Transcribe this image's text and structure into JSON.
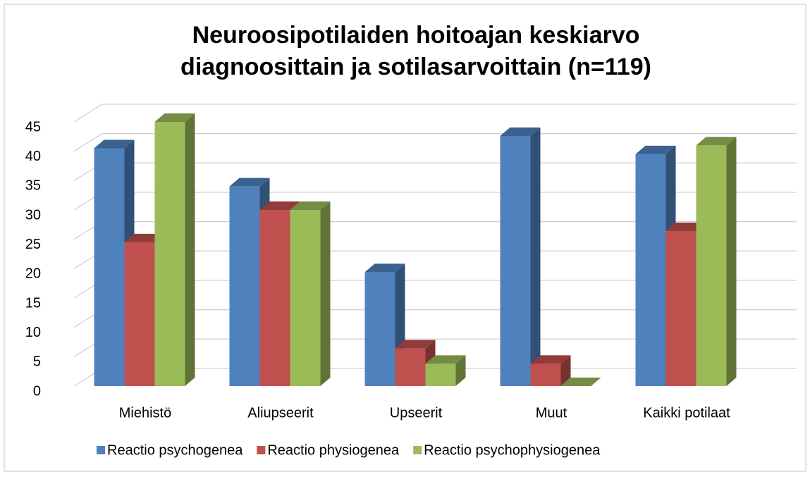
{
  "chart_data": {
    "type": "bar3d",
    "title": [
      "Neuroosipotilaiden hoitoajan keskiarvo",
      "diagnoosittain ja sotilasarvoittain (n=119)"
    ],
    "categories": [
      "Miehistö",
      "Aliupseerit",
      "Upseerit",
      "Muut",
      "Kaikki potilaat"
    ],
    "series": [
      {
        "name": "Reactio psychogenea",
        "color": "#4f81bd",
        "values": [
          40.5,
          34,
          19.4,
          42.6,
          39.5
        ]
      },
      {
        "name": "Reactio physiogenea",
        "color": "#c0504d",
        "values": [
          24.5,
          30,
          6.4,
          3.8,
          26.4
        ]
      },
      {
        "name": "Reactio psychophysiogenea",
        "color": "#9bbb59",
        "values": [
          45,
          30,
          3.8,
          0,
          41
        ]
      }
    ],
    "ylim": [
      0,
      45
    ],
    "yticks": [
      0,
      5,
      10,
      15,
      20,
      25,
      30,
      35,
      40,
      45
    ],
    "grid": true,
    "legend": "bottom"
  }
}
